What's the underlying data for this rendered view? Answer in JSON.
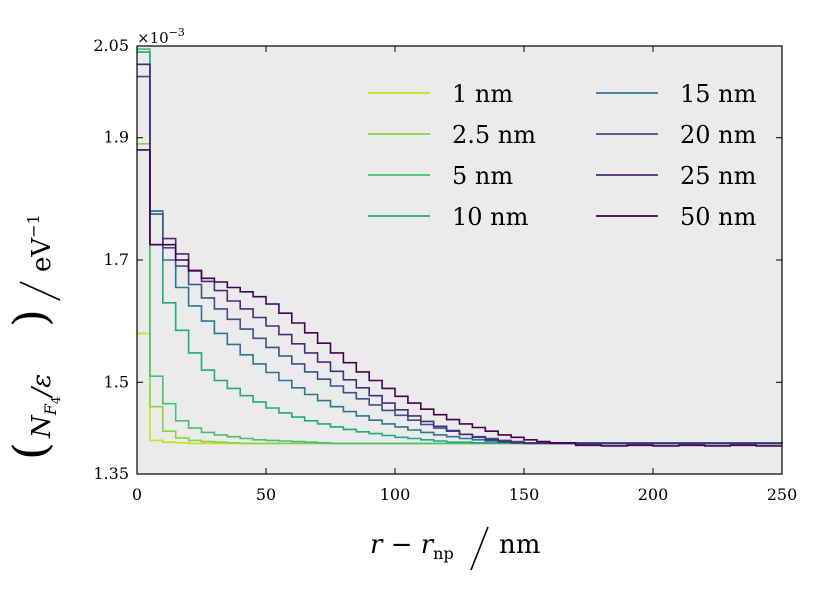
{
  "chart_data": {
    "type": "line",
    "step": true,
    "xlabel": "r − r_np / nm",
    "xlabel_parts": {
      "var": "r − r",
      "sub": "np",
      "unit": "nm"
    },
    "ylabel": "(N_F4/ε) / eV⁻¹",
    "ylabel_parts": {
      "var": "N",
      "sub": "F",
      "subsub": "4",
      "div": "/ε",
      "unit": "eV",
      "exp": "−1"
    },
    "y_multiplier": "×10⁻³",
    "y_multiplier_parts": {
      "base": "×10",
      "exp": "−3"
    },
    "xlim": [
      0,
      250
    ],
    "ylim": [
      1.35,
      2.05
    ],
    "xticks": [
      0,
      50,
      100,
      150,
      200,
      250
    ],
    "yticks": [
      1.35,
      1.5,
      1.7,
      1.9,
      2.05
    ],
    "ytick_labels": [
      "1.35",
      "1.5",
      "1.7",
      "1.9",
      "2.05"
    ],
    "xtick_labels": [
      "0",
      "50",
      "100",
      "150",
      "200",
      "250"
    ],
    "background": "#ebebeb",
    "legend_position": "top-right",
    "legend_columns": 2,
    "bin_width": 5,
    "series": [
      {
        "name": "1 nm",
        "label": "1 nm",
        "color": "#c8e020",
        "x": [
          0,
          5,
          10,
          15,
          20,
          25,
          30,
          35,
          250
        ],
        "y": [
          1.58,
          1.405,
          1.402,
          1.401,
          1.4,
          1.4,
          1.4,
          1.4,
          1.4
        ]
      },
      {
        "name": "2.5 nm",
        "label": "2.5 nm",
        "color": "#86d549",
        "x": [
          0,
          5,
          10,
          15,
          20,
          25,
          30,
          35,
          40,
          45,
          250
        ],
        "y": [
          1.89,
          1.46,
          1.42,
          1.409,
          1.405,
          1.403,
          1.402,
          1.401,
          1.4,
          1.4,
          1.4
        ]
      },
      {
        "name": "5 nm",
        "label": "5 nm",
        "color": "#48c16e",
        "x": [
          0,
          5,
          10,
          15,
          20,
          25,
          30,
          35,
          40,
          45,
          50,
          55,
          60,
          65,
          70,
          75,
          80,
          250
        ],
        "y": [
          2.045,
          1.51,
          1.465,
          1.437,
          1.425,
          1.418,
          1.414,
          1.411,
          1.408,
          1.406,
          1.405,
          1.404,
          1.403,
          1.402,
          1.401,
          1.4,
          1.4,
          1.4
        ]
      },
      {
        "name": "10 nm",
        "label": "10 nm",
        "color": "#22a884",
        "x": [
          0,
          5,
          10,
          15,
          20,
          25,
          30,
          35,
          40,
          45,
          50,
          55,
          60,
          65,
          70,
          75,
          80,
          85,
          90,
          95,
          100,
          105,
          110,
          115,
          120,
          130,
          250
        ],
        "y": [
          2.04,
          1.78,
          1.63,
          1.585,
          1.548,
          1.52,
          1.503,
          1.49,
          1.478,
          1.468,
          1.458,
          1.45,
          1.443,
          1.437,
          1.432,
          1.427,
          1.423,
          1.419,
          1.416,
          1.413,
          1.41,
          1.408,
          1.406,
          1.404,
          1.402,
          1.401,
          1.4
        ]
      },
      {
        "name": "15 nm",
        "label": "15 nm",
        "color": "#2a788e",
        "x": [
          0,
          5,
          10,
          15,
          20,
          25,
          30,
          35,
          40,
          45,
          50,
          55,
          60,
          65,
          70,
          75,
          80,
          85,
          90,
          95,
          100,
          105,
          110,
          115,
          120,
          125,
          130,
          135,
          140,
          150,
          250
        ],
        "y": [
          2.02,
          1.78,
          1.7,
          1.655,
          1.625,
          1.6,
          1.58,
          1.562,
          1.545,
          1.53,
          1.516,
          1.503,
          1.491,
          1.48,
          1.47,
          1.46,
          1.452,
          1.445,
          1.438,
          1.432,
          1.427,
          1.422,
          1.418,
          1.414,
          1.411,
          1.408,
          1.406,
          1.404,
          1.402,
          1.401,
          1.4
        ]
      },
      {
        "name": "20 nm",
        "label": "20 nm",
        "color": "#3b518b",
        "x": [
          0,
          5,
          10,
          15,
          20,
          25,
          30,
          35,
          40,
          45,
          50,
          55,
          60,
          65,
          70,
          75,
          80,
          85,
          90,
          95,
          100,
          105,
          110,
          115,
          120,
          125,
          130,
          135,
          140,
          145,
          150,
          160,
          250
        ],
        "y": [
          2.0,
          1.775,
          1.72,
          1.69,
          1.66,
          1.638,
          1.62,
          1.603,
          1.587,
          1.572,
          1.557,
          1.543,
          1.53,
          1.517,
          1.505,
          1.494,
          1.483,
          1.473,
          1.463,
          1.454,
          1.446,
          1.438,
          1.431,
          1.425,
          1.42,
          1.415,
          1.411,
          1.408,
          1.405,
          1.403,
          1.401,
          1.4,
          1.4
        ]
      },
      {
        "name": "25 nm",
        "label": "25 nm",
        "color": "#472c7a",
        "x": [
          0,
          5,
          10,
          15,
          20,
          25,
          30,
          35,
          40,
          45,
          50,
          55,
          60,
          65,
          70,
          75,
          80,
          85,
          90,
          95,
          100,
          105,
          110,
          115,
          120,
          125,
          130,
          135,
          140,
          145,
          150,
          160,
          250
        ],
        "y": [
          2.02,
          1.725,
          1.735,
          1.71,
          1.682,
          1.665,
          1.65,
          1.633,
          1.62,
          1.606,
          1.592,
          1.578,
          1.563,
          1.548,
          1.533,
          1.518,
          1.504,
          1.491,
          1.478,
          1.466,
          1.455,
          1.445,
          1.436,
          1.428,
          1.421,
          1.415,
          1.41,
          1.406,
          1.403,
          1.401,
          1.4,
          1.4,
          1.4
        ]
      },
      {
        "name": "50 nm",
        "label": "50 nm",
        "color": "#440154",
        "x": [
          0,
          5,
          10,
          15,
          20,
          25,
          30,
          35,
          40,
          45,
          50,
          55,
          60,
          65,
          70,
          75,
          80,
          85,
          90,
          95,
          100,
          105,
          110,
          115,
          120,
          125,
          130,
          135,
          140,
          145,
          150,
          155,
          160,
          170,
          180,
          190,
          200,
          210,
          220,
          230,
          240,
          250
        ],
        "y": [
          1.88,
          1.725,
          1.725,
          1.7,
          1.683,
          1.67,
          1.664,
          1.655,
          1.648,
          1.64,
          1.628,
          1.613,
          1.597,
          1.581,
          1.564,
          1.548,
          1.532,
          1.517,
          1.503,
          1.49,
          1.477,
          1.466,
          1.456,
          1.447,
          1.439,
          1.432,
          1.426,
          1.42,
          1.414,
          1.41,
          1.406,
          1.403,
          1.401,
          1.397,
          1.396,
          1.397,
          1.396,
          1.397,
          1.396,
          1.397,
          1.396,
          1.396
        ]
      }
    ]
  }
}
